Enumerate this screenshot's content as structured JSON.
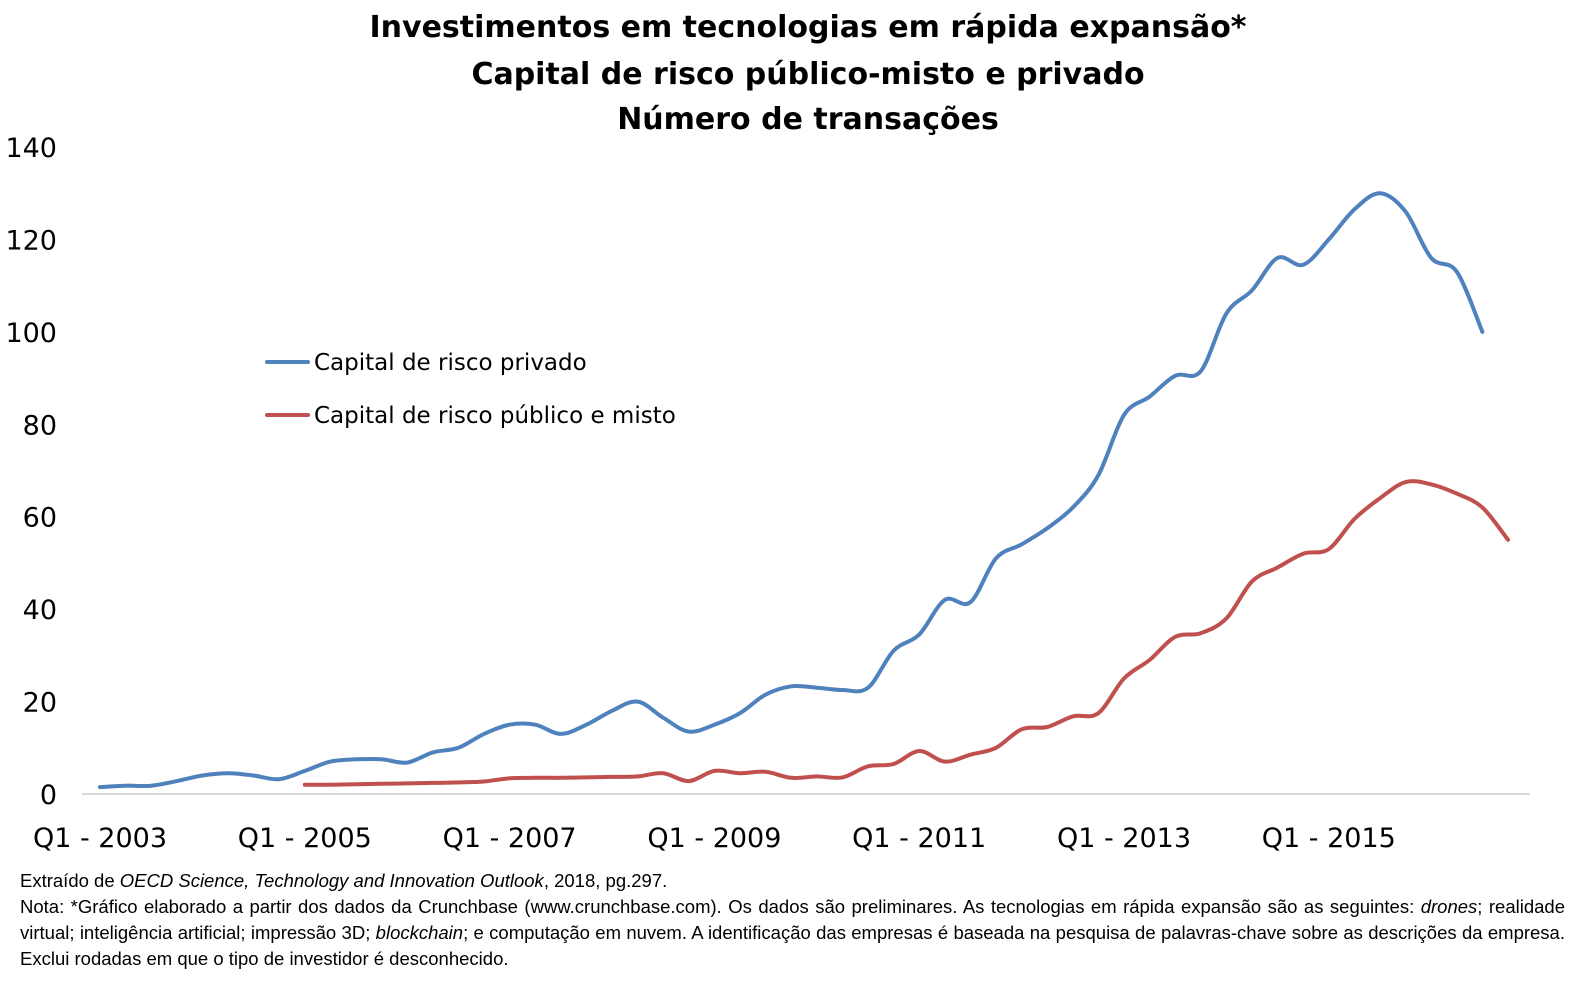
{
  "chart_data": {
    "type": "line",
    "title": "Investimentos em tecnologias em rápida expansão*",
    "subtitle": "Capital de risco público-misto e privado",
    "subtitle2": "Número de transações",
    "ylim": [
      0,
      140
    ],
    "yticks": [
      "0",
      "20",
      "40",
      "60",
      "80",
      "100",
      "120",
      "140"
    ],
    "x_labels": [
      "Q1 - 2003",
      "Q1 - 2005",
      "Q1 - 2007",
      "Q1 - 2009",
      "Q1 - 2011",
      "Q1 - 2013",
      "Q1 - 2015"
    ],
    "legend_position": "left-middle",
    "series": [
      {
        "name": "Capital de risco privado",
        "color": "#4F81BD",
        "start_index": 0,
        "values": [
          1.5,
          1.8,
          1.8,
          2.8,
          4.0,
          4.5,
          4.0,
          3.2,
          5.0,
          7.0,
          7.5,
          7.5,
          6.8,
          9.0,
          10.0,
          13.0,
          15.0,
          15.0,
          13.0,
          15.0,
          18.0,
          20.0,
          16.5,
          13.5,
          15.0,
          17.5,
          21.5,
          23.3,
          23.0,
          22.5,
          23.0,
          31.0,
          34.5,
          42.0,
          41.5,
          51.0,
          54.0,
          57.5,
          62.0,
          69.0,
          82.0,
          86.0,
          90.5,
          91.5,
          104.0,
          109.0,
          116.0,
          114.5,
          120.0,
          126.5,
          130.0,
          126.0,
          116.0,
          113.0,
          100.0
        ]
      },
      {
        "name": "Capital de risco público e misto",
        "color": "#C0504D",
        "start_index": 8,
        "values": [
          2.0,
          2.0,
          2.1,
          2.2,
          2.3,
          2.4,
          2.5,
          2.7,
          3.4,
          3.5,
          3.5,
          3.6,
          3.7,
          3.8,
          4.5,
          2.8,
          5.0,
          4.5,
          4.8,
          3.5,
          3.8,
          3.6,
          6.0,
          6.5,
          9.3,
          7.0,
          8.5,
          10.0,
          14.0,
          14.5,
          16.8,
          17.5,
          25.0,
          29.0,
          34.0,
          34.8,
          38.0,
          46.0,
          49.0,
          52.0,
          53.0,
          59.5,
          64.0,
          67.5,
          67.0,
          65.0,
          62.0,
          55.0
        ]
      }
    ]
  },
  "notes": {
    "source_prefix": "Extraído de ",
    "source_title": "OECD Science, Technology and Innovation Outlook",
    "source_suffix": ", 2018, pg.297.",
    "note_prefix": "Nota: *Gráfico elaborado a partir dos dados da Crunchbase (www.crunchbase.com). Os dados são preliminares. As tecnologias em rápida expansão são as seguintes: ",
    "note_drones": "drones",
    "note_mid": "; realidade virtual; inteligência artificial; impressão 3D; ",
    "note_blockchain": "blockchain",
    "note_suffix": "; e computação em nuvem. A identificação das empresas é baseada na pesquisa de palavras-chave sobre as descrições da empresa. Exclui rodadas em que o tipo de investidor é desconhecido."
  }
}
